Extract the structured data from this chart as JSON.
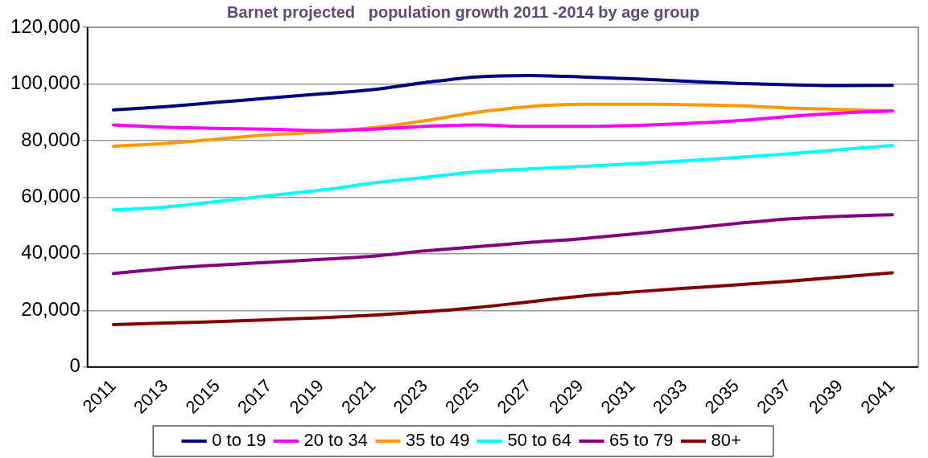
{
  "chart_data": {
    "type": "line",
    "title": "Barnet projected   population growth 2011 -2014 by age group",
    "categories": [
      "2011",
      "2013",
      "2015",
      "2017",
      "2019",
      "2021",
      "2023",
      "2025",
      "2027",
      "2029",
      "2031",
      "2033",
      "2035",
      "2037",
      "2039",
      "2041"
    ],
    "series": [
      {
        "name": "0 to 19",
        "color": "#000080",
        "values": [
          90800,
          92000,
          93500,
          95000,
          96500,
          98000,
          100500,
          102500,
          103000,
          102500,
          101800,
          101000,
          100200,
          99700,
          99400,
          99500
        ]
      },
      {
        "name": "20 to 34",
        "color": "#ff00ff",
        "values": [
          85500,
          84700,
          84300,
          84000,
          83500,
          84000,
          85000,
          85500,
          85000,
          85000,
          85300,
          86000,
          87000,
          88500,
          89700,
          90500
        ]
      },
      {
        "name": "35 to 49",
        "color": "#ff9900",
        "values": [
          78000,
          79000,
          80500,
          82000,
          83000,
          84500,
          87000,
          90000,
          92000,
          92800,
          92800,
          92700,
          92300,
          91500,
          91000,
          90500
        ]
      },
      {
        "name": "50 to 64",
        "color": "#00ffff",
        "values": [
          55500,
          56500,
          58500,
          60500,
          62500,
          65000,
          67000,
          69000,
          70000,
          70800,
          71800,
          72800,
          74000,
          75300,
          76800,
          78300
        ]
      },
      {
        "name": "65 to 79",
        "color": "#800080",
        "values": [
          33000,
          34800,
          36000,
          37000,
          38000,
          39200,
          41000,
          42500,
          44000,
          45300,
          47000,
          48800,
          50700,
          52300,
          53200,
          53800
        ]
      },
      {
        "name": "80+",
        "color": "#800000",
        "values": [
          15000,
          15500,
          16000,
          16700,
          17400,
          18300,
          19500,
          21000,
          23000,
          25000,
          26500,
          27800,
          29000,
          30300,
          31800,
          33300
        ]
      }
    ],
    "ylim": [
      0,
      120000
    ],
    "yticks": [
      0,
      {
        "value": 20000,
        "label": "20,000"
      },
      {
        "value": 40000,
        "label": "40,000"
      },
      {
        "value": 60000,
        "label": "60,000"
      },
      {
        "value": 80000,
        "label": "80,000"
      },
      {
        "value": 100000,
        "label": "100,000"
      },
      {
        "value": 120000,
        "label": "120,000"
      }
    ],
    "grid": "y",
    "legend": "bottom",
    "marker": "none",
    "line_style": "solid"
  }
}
